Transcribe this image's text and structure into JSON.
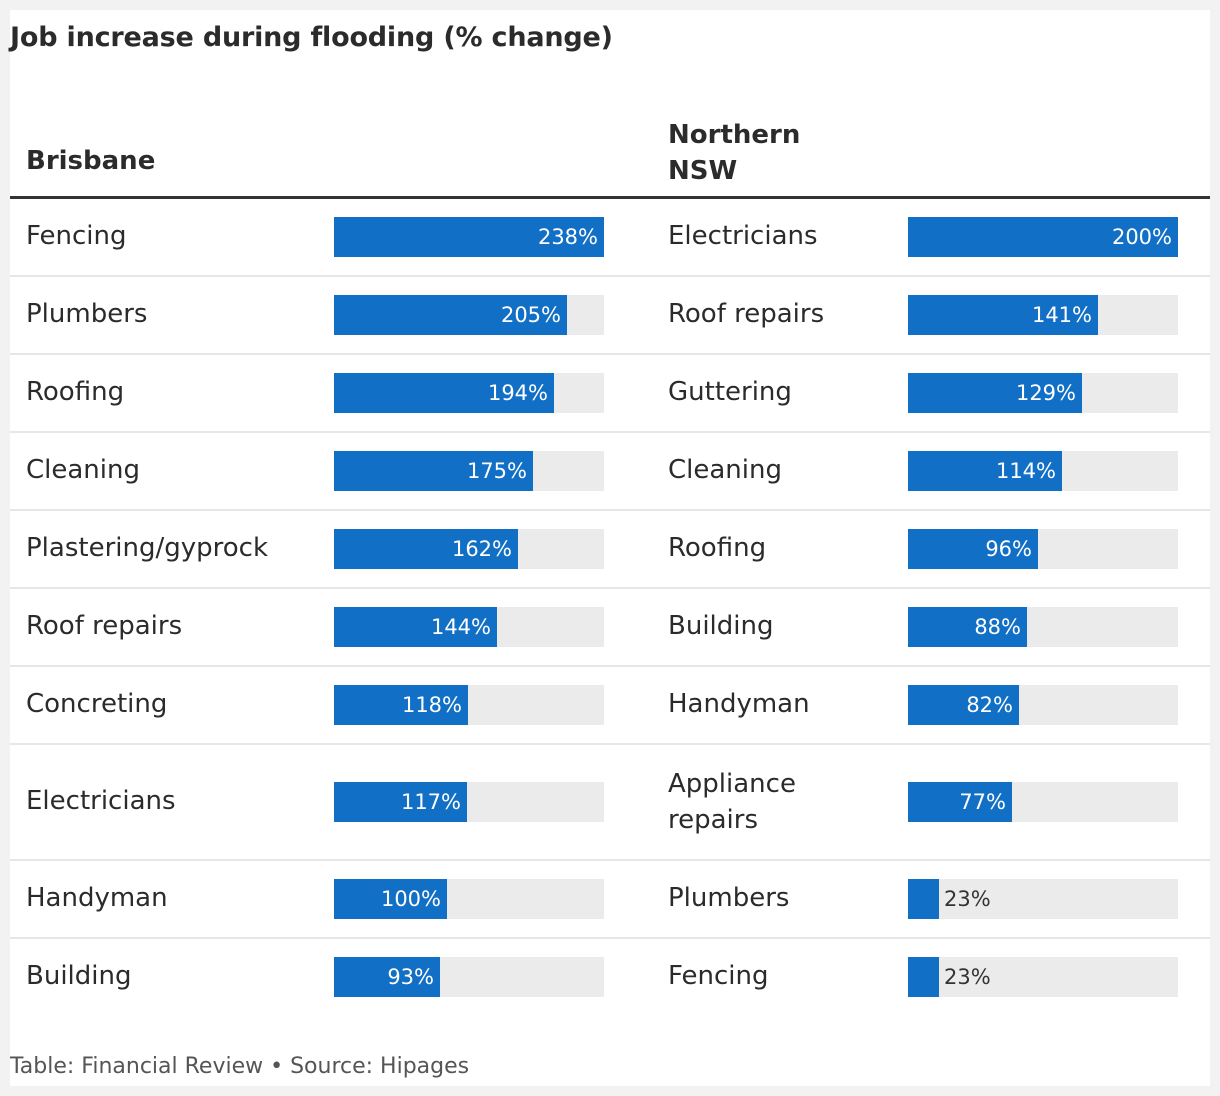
{
  "title": "Job increase during flooding (% change)",
  "footer": "Table: Financial Review • Source: Hipages",
  "colors": {
    "bar": "#116fc6",
    "track": "#ebebeb"
  },
  "chart_data": [
    {
      "type": "bar",
      "orientation": "horizontal",
      "title": "Brisbane",
      "xlim": [
        0,
        238
      ],
      "categories": [
        "Fencing",
        "Plumbers",
        "Roofing",
        "Cleaning",
        "Plastering/gyprock",
        "Roof repairs",
        "Concreting",
        "Electricians",
        "Handyman",
        "Building"
      ],
      "values": [
        238,
        205,
        194,
        175,
        162,
        144,
        118,
        117,
        100,
        93
      ],
      "labels": [
        "238%",
        "205%",
        "194%",
        "175%",
        "162%",
        "144%",
        "118%",
        "117%",
        "100%",
        "93%"
      ]
    },
    {
      "type": "bar",
      "orientation": "horizontal",
      "title": "Northern NSW",
      "xlim": [
        0,
        200
      ],
      "categories": [
        "Electricians",
        "Roof repairs",
        "Guttering",
        "Cleaning",
        "Roofing",
        "Building",
        "Handyman",
        "Appliance repairs",
        "Plumbers",
        "Fencing"
      ],
      "values": [
        200,
        141,
        129,
        114,
        96,
        88,
        82,
        77,
        23,
        23
      ],
      "labels": [
        "200%",
        "141%",
        "129%",
        "114%",
        "96%",
        "88%",
        "82%",
        "77%",
        "23%",
        "23%"
      ]
    }
  ]
}
